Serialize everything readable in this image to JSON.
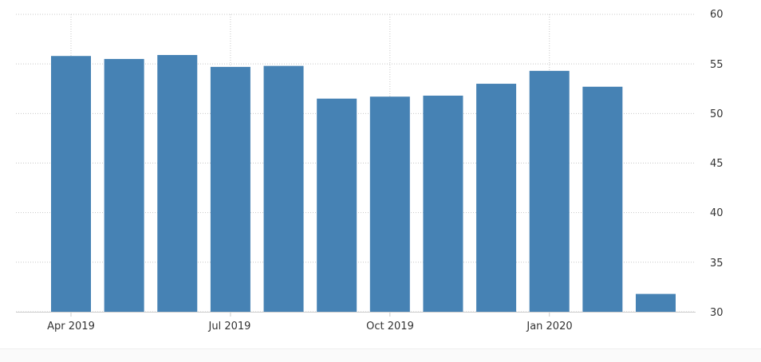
{
  "chart_data": {
    "type": "bar",
    "categories": [
      "Apr 2019",
      "May 2019",
      "Jun 2019",
      "Jul 2019",
      "Aug 2019",
      "Sep 2019",
      "Oct 2019",
      "Nov 2019",
      "Dec 2019",
      "Jan 2020",
      "Feb 2020",
      "Mar 2020"
    ],
    "values": [
      55.8,
      55.5,
      55.9,
      54.7,
      54.8,
      51.5,
      51.7,
      51.8,
      53.0,
      54.3,
      52.7,
      31.8
    ],
    "x_tick_labels": [
      "Apr 2019",
      "Jul 2019",
      "Oct 2019",
      "Jan 2020"
    ],
    "y_ticks": [
      "30",
      "35",
      "40",
      "45",
      "50",
      "55",
      "60"
    ],
    "ylim": [
      30,
      60
    ],
    "grid": true,
    "bar_color": "#4682b4",
    "y_axis_side": "right"
  }
}
